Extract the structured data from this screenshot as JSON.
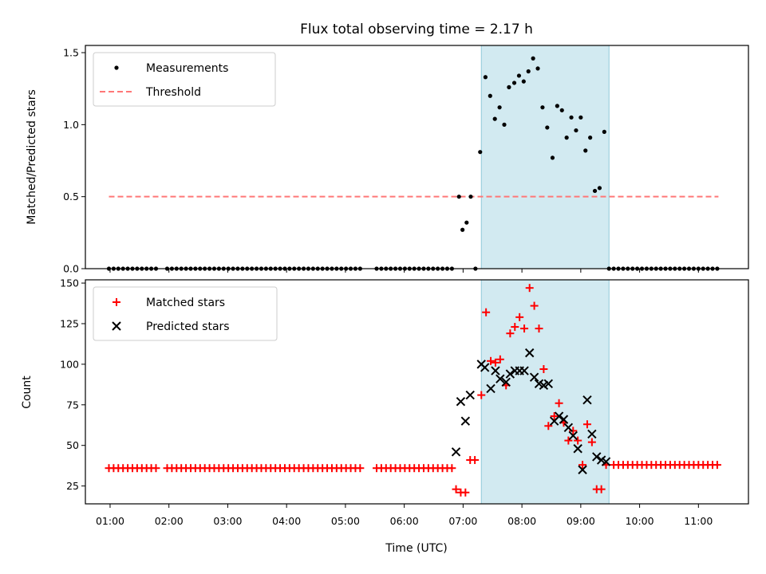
{
  "chart_data": [
    {
      "type": "scatter",
      "title": "Flux total observing time = 2.17 h",
      "ylabel": "Matched/Predicted stars",
      "ylim": [
        0,
        1.55
      ],
      "yticks": [
        0.0,
        0.5,
        1.0,
        1.5
      ],
      "ytick_labels": [
        "0.0",
        "0.5",
        "1.0",
        "1.5"
      ],
      "legend": {
        "position": "top-left",
        "items": [
          "Measurements",
          "Threshold"
        ]
      },
      "threshold": {
        "name": "Threshold",
        "value": 0.5,
        "x_start": 0.98,
        "x_end": 11.34,
        "color": "#ff7777"
      },
      "series": [
        {
          "name": "Measurements",
          "color": "#000000",
          "x": [
            6.93,
            6.99,
            7.06,
            7.13,
            7.21,
            7.29,
            7.38,
            7.46,
            7.54,
            7.62,
            7.7,
            7.78,
            7.87,
            7.95,
            8.03,
            8.11,
            8.19,
            8.27,
            8.35,
            8.43,
            8.52,
            8.6,
            8.68,
            8.76,
            8.84,
            8.92,
            9.0,
            9.08,
            9.16,
            9.24,
            9.32,
            9.4,
            9.48
          ],
          "y": [
            0.5,
            0.27,
            0.32,
            0.5,
            0.0,
            0.81,
            1.33,
            1.2,
            1.04,
            1.12,
            1.0,
            1.26,
            1.29,
            1.34,
            1.3,
            1.37,
            1.46,
            1.39,
            1.12,
            0.98,
            0.77,
            1.13,
            1.1,
            0.91,
            1.05,
            0.96,
            1.05,
            0.82,
            0.91,
            0.54,
            0.56,
            0.95,
            0.0
          ]
        },
        {
          "name": "Measurements (zero level)",
          "color": "#000000",
          "x": [
            0.98,
            1.06,
            1.14,
            1.22,
            1.3,
            1.38,
            1.46,
            1.54,
            1.62,
            1.7,
            1.78,
            1.97,
            2.05,
            2.13,
            2.21,
            2.29,
            2.37,
            2.45,
            2.53,
            2.61,
            2.69,
            2.77,
            2.85,
            2.93,
            3.01,
            3.09,
            3.17,
            3.25,
            3.33,
            3.41,
            3.49,
            3.57,
            3.65,
            3.73,
            3.81,
            3.89,
            3.97,
            4.05,
            4.13,
            4.21,
            4.29,
            4.37,
            4.45,
            4.53,
            4.61,
            4.69,
            4.77,
            4.85,
            4.93,
            5.01,
            5.09,
            5.17,
            5.25,
            5.53,
            5.61,
            5.69,
            5.77,
            5.85,
            5.93,
            6.01,
            6.09,
            6.17,
            6.25,
            6.33,
            6.41,
            6.49,
            6.57,
            6.65,
            6.73,
            6.81,
            9.56,
            9.64,
            9.72,
            9.8,
            9.88,
            9.96,
            10.04,
            10.12,
            10.2,
            10.28,
            10.36,
            10.44,
            10.52,
            10.6,
            10.68,
            10.76,
            10.84,
            10.92,
            11.0,
            11.08,
            11.16,
            11.24,
            11.32
          ],
          "y": [
            0,
            0,
            0,
            0,
            0,
            0,
            0,
            0,
            0,
            0,
            0,
            0,
            0,
            0,
            0,
            0,
            0,
            0,
            0,
            0,
            0,
            0,
            0,
            0,
            0,
            0,
            0,
            0,
            0,
            0,
            0,
            0,
            0,
            0,
            0,
            0,
            0,
            0,
            0,
            0,
            0,
            0,
            0,
            0,
            0,
            0,
            0,
            0,
            0,
            0,
            0,
            0,
            0,
            0,
            0,
            0,
            0,
            0,
            0,
            0,
            0,
            0,
            0,
            0,
            0,
            0,
            0,
            0,
            0,
            0,
            0,
            0,
            0,
            0,
            0,
            0,
            0,
            0,
            0,
            0,
            0,
            0,
            0,
            0,
            0,
            0,
            0,
            0,
            0,
            0,
            0,
            0,
            0
          ]
        }
      ]
    },
    {
      "type": "scatter",
      "xlabel": "Time (UTC)",
      "ylabel": "Count",
      "ylim": [
        14,
        152
      ],
      "yticks": [
        25,
        50,
        75,
        100,
        125,
        150
      ],
      "ytick_labels": [
        "25",
        "50",
        "75",
        "100",
        "125",
        "150"
      ],
      "xlim": [
        0.58,
        11.85
      ],
      "xticks": [
        1,
        2,
        3,
        4,
        5,
        6,
        7,
        8,
        9,
        10,
        11
      ],
      "xtick_labels": [
        "01:00",
        "02:00",
        "03:00",
        "04:00",
        "05:00",
        "06:00",
        "07:00",
        "08:00",
        "09:00",
        "10:00",
        "11:00"
      ],
      "legend": {
        "position": "top-left",
        "items": [
          "Matched stars",
          "Predicted stars"
        ]
      },
      "series": [
        {
          "name": "Matched stars",
          "color": "#ff0000",
          "x": [
            6.88,
            6.96,
            7.04,
            7.12,
            7.2,
            7.31,
            7.39,
            7.47,
            7.55,
            7.63,
            7.73,
            7.8,
            7.88,
            7.96,
            8.04,
            8.13,
            8.21,
            8.29,
            8.37,
            8.45,
            8.55,
            8.63,
            8.71,
            8.79,
            8.87,
            8.95,
            9.03,
            9.11,
            9.19,
            9.27,
            9.35,
            9.43
          ],
          "y": [
            23,
            21,
            21,
            41,
            41,
            81,
            132,
            102,
            101,
            103,
            87,
            119,
            123,
            129,
            122,
            147,
            136,
            122,
            97,
            62,
            68,
            76,
            64,
            53,
            59,
            53,
            38,
            63,
            52,
            23,
            23,
            38
          ]
        },
        {
          "name": "Matched stars (baseline)",
          "color": "#ff0000",
          "x": [
            0.98,
            1.06,
            1.14,
            1.22,
            1.3,
            1.38,
            1.46,
            1.54,
            1.62,
            1.7,
            1.78,
            1.97,
            2.05,
            2.13,
            2.21,
            2.29,
            2.37,
            2.45,
            2.53,
            2.61,
            2.69,
            2.77,
            2.85,
            2.93,
            3.01,
            3.09,
            3.17,
            3.25,
            3.33,
            3.41,
            3.49,
            3.57,
            3.65,
            3.73,
            3.81,
            3.89,
            3.97,
            4.05,
            4.13,
            4.21,
            4.29,
            4.37,
            4.45,
            4.53,
            4.61,
            4.69,
            4.77,
            4.85,
            4.93,
            5.01,
            5.09,
            5.17,
            5.25,
            5.53,
            5.61,
            5.69,
            5.77,
            5.85,
            5.93,
            6.01,
            6.09,
            6.17,
            6.25,
            6.33,
            6.41,
            6.49,
            6.57,
            6.65,
            6.73,
            6.81,
            9.56,
            9.64,
            9.72,
            9.8,
            9.88,
            9.96,
            10.04,
            10.12,
            10.2,
            10.28,
            10.36,
            10.44,
            10.52,
            10.6,
            10.68,
            10.76,
            10.84,
            10.92,
            11.0,
            11.08,
            11.16,
            11.24,
            11.32
          ],
          "y": [
            36,
            36,
            36,
            36,
            36,
            36,
            36,
            36,
            36,
            36,
            36,
            36,
            36,
            36,
            36,
            36,
            36,
            36,
            36,
            36,
            36,
            36,
            36,
            36,
            36,
            36,
            36,
            36,
            36,
            36,
            36,
            36,
            36,
            36,
            36,
            36,
            36,
            36,
            36,
            36,
            36,
            36,
            36,
            36,
            36,
            36,
            36,
            36,
            36,
            36,
            36,
            36,
            36,
            36,
            36,
            36,
            36,
            36,
            36,
            36,
            36,
            36,
            36,
            36,
            36,
            36,
            36,
            36,
            36,
            36,
            38,
            38,
            38,
            38,
            38,
            38,
            38,
            38,
            38,
            38,
            38,
            38,
            38,
            38,
            38,
            38,
            38,
            38,
            38,
            38,
            38,
            38,
            38
          ]
        },
        {
          "name": "Predicted stars",
          "color": "#000000",
          "x": [
            6.88,
            6.96,
            7.04,
            7.12,
            7.31,
            7.37,
            7.47,
            7.55,
            7.63,
            7.73,
            7.8,
            7.88,
            7.96,
            8.04,
            8.13,
            8.21,
            8.29,
            8.37,
            8.45,
            8.55,
            8.63,
            8.71,
            8.79,
            8.87,
            8.95,
            9.03,
            9.11,
            9.19,
            9.27,
            9.35,
            9.43
          ],
          "y": [
            46,
            77,
            65,
            81,
            100,
            98,
            85,
            96,
            91,
            89,
            94,
            96,
            96,
            96,
            107,
            92,
            88,
            87,
            88,
            65,
            68,
            66,
            61,
            56,
            48,
            35,
            78,
            57,
            43,
            41,
            40
          ]
        }
      ]
    }
  ],
  "shaded_interval": {
    "start": 7.31,
    "end": 9.48,
    "color": "#add8e6"
  }
}
